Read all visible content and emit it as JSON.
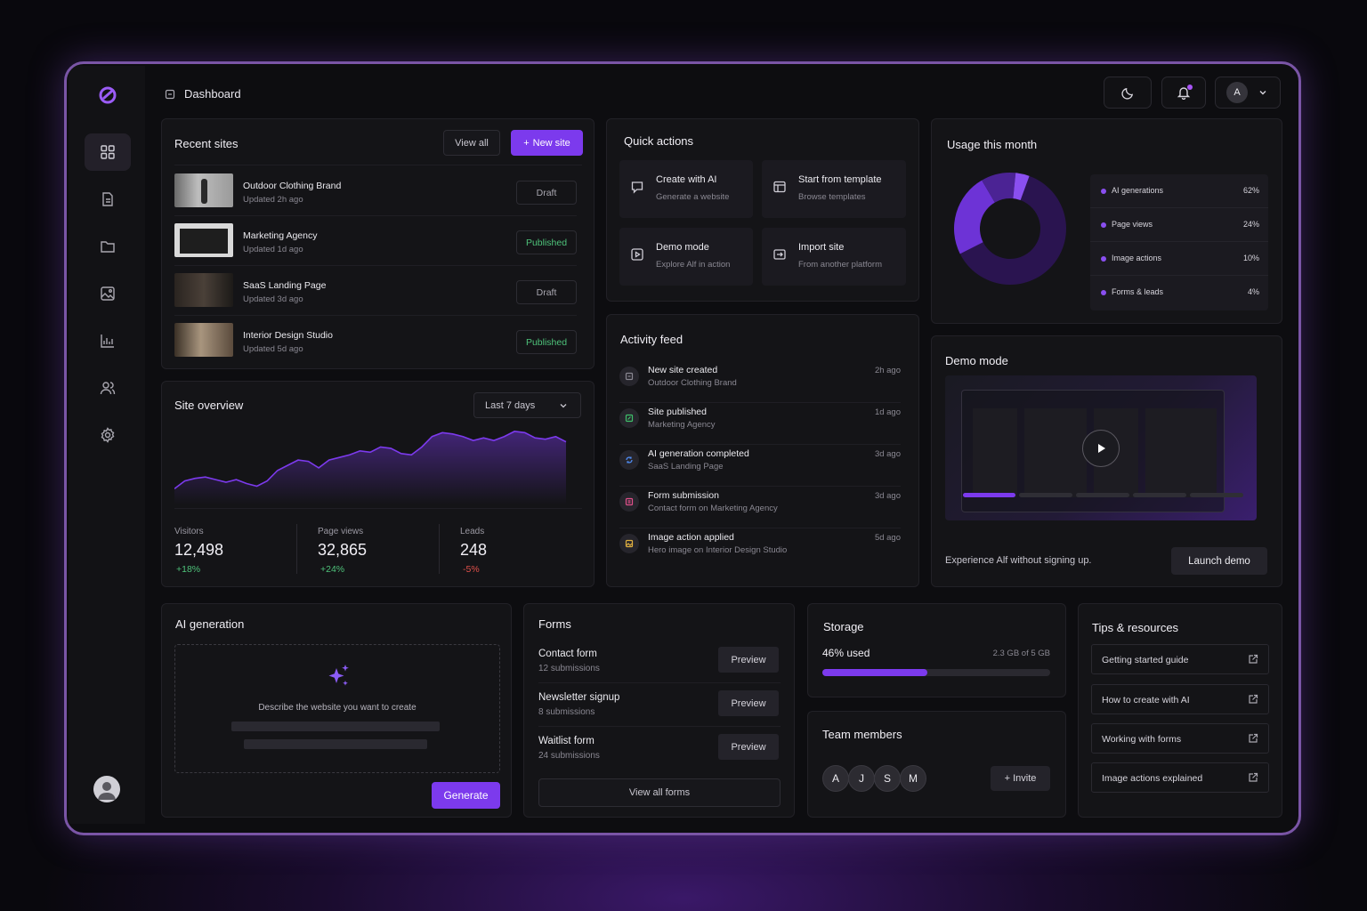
{
  "header": {
    "title": "Dashboard",
    "user_initial": "A"
  },
  "sidebar": {
    "items": [
      {
        "name": "dashboard",
        "icon": "grid-icon",
        "active": true
      },
      {
        "name": "pages",
        "icon": "document-icon"
      },
      {
        "name": "files",
        "icon": "folder-icon"
      },
      {
        "name": "media",
        "icon": "image-icon"
      },
      {
        "name": "analytics",
        "icon": "chart-icon"
      },
      {
        "name": "team",
        "icon": "users-icon"
      },
      {
        "name": "settings",
        "icon": "gear-icon"
      }
    ]
  },
  "recent_sites": {
    "title": "Recent sites",
    "view_all": "View all",
    "new_site": "New site",
    "rows": [
      {
        "name": "Outdoor Clothing Brand",
        "updated": "Updated 2h ago",
        "status": "Draft"
      },
      {
        "name": "Marketing Agency",
        "updated": "Updated 1d ago",
        "status": "Published"
      },
      {
        "name": "SaaS Landing Page",
        "updated": "Updated 3d ago",
        "status": "Draft"
      },
      {
        "name": "Interior Design Studio",
        "updated": "Updated 5d ago",
        "status": "Published"
      }
    ]
  },
  "overview": {
    "title": "Site overview",
    "range": "Last 7 days",
    "stats": [
      {
        "label": "Visitors",
        "value": "12,498",
        "delta": "+18%",
        "positive": true
      },
      {
        "label": "Page views",
        "value": "32,865",
        "delta": "+24%",
        "positive": true
      },
      {
        "label": "Leads",
        "value": "248",
        "delta": "-5%",
        "positive": false
      }
    ]
  },
  "chart_data": {
    "type": "area",
    "values": [
      12,
      18,
      20,
      21,
      19,
      17,
      19,
      16,
      14,
      18,
      26,
      30,
      34,
      33,
      28,
      34,
      36,
      38,
      41,
      40,
      44,
      43,
      39,
      38,
      44,
      52,
      55,
      54,
      52,
      49,
      51,
      49,
      52,
      56,
      55,
      51,
      50,
      52,
      48
    ],
    "color": "#7c3aed"
  },
  "quick_actions": {
    "title": "Quick actions",
    "tiles": [
      {
        "title": "Create with AI",
        "subtitle": "Generate a website",
        "icon": "chat-icon"
      },
      {
        "title": "Start from template",
        "subtitle": "Browse templates",
        "icon": "template-icon"
      },
      {
        "title": "Demo mode",
        "subtitle": "Explore Alf in action",
        "icon": "play-icon"
      },
      {
        "title": "Import site",
        "subtitle": "From another platform",
        "icon": "import-icon"
      }
    ]
  },
  "activity": {
    "title": "Activity feed",
    "rows": [
      {
        "title": "New site created",
        "detail": "Outdoor Clothing Brand",
        "time": "2h ago",
        "color": "#8a8892"
      },
      {
        "title": "Site published",
        "detail": "Marketing Agency",
        "time": "1d ago",
        "color": "#3fbf6a"
      },
      {
        "title": "AI generation completed",
        "detail": "SaaS Landing Page",
        "time": "3d ago",
        "color": "#4f8ef7"
      },
      {
        "title": "Form submission",
        "detail": "Contact form on Marketing Agency",
        "time": "3d ago",
        "color": "#e0508a"
      },
      {
        "title": "Image action applied",
        "detail": "Hero image on Interior Design Studio",
        "time": "5d ago",
        "color": "#e0b040"
      }
    ]
  },
  "usage": {
    "title": "Usage this month",
    "items": [
      {
        "label": "AI generations",
        "value": "62%",
        "share": 62,
        "color": "#2a1450"
      },
      {
        "label": "Page views",
        "value": "24%",
        "share": 24,
        "color": "#6d33d6"
      },
      {
        "label": "Image actions",
        "value": "10%",
        "share": 10,
        "color": "#4b2394"
      },
      {
        "label": "Forms & leads",
        "value": "4%",
        "share": 4,
        "color": "#8a4ff0"
      }
    ]
  },
  "demo": {
    "title": "Demo mode",
    "caption": "Experience Alf without signing up.",
    "launch": "Launch demo",
    "progress": 0.2
  },
  "ai_gen": {
    "title": "AI generation",
    "prompt": "Describe the website you want to create",
    "generate": "Generate"
  },
  "forms": {
    "title": "Forms",
    "rows": [
      {
        "name": "Contact form",
        "subs": "12 submissions",
        "action": "Preview"
      },
      {
        "name": "Newsletter signup",
        "subs": "8 submissions",
        "action": "Preview"
      },
      {
        "name": "Waitlist form",
        "subs": "24 submissions",
        "action": "Preview"
      }
    ],
    "view_all": "View all forms"
  },
  "storage": {
    "title": "Storage",
    "used": "46% used",
    "detail": "2.3 GB of 5 GB",
    "fraction": 0.46
  },
  "team": {
    "title": "Team members",
    "members": [
      "A",
      "J",
      "S",
      "M"
    ],
    "invite": "+ Invite"
  },
  "tips": {
    "title": "Tips & resources",
    "items": [
      "Getting started guide",
      "How to create with AI",
      "Working with forms",
      "Image actions explained"
    ]
  }
}
